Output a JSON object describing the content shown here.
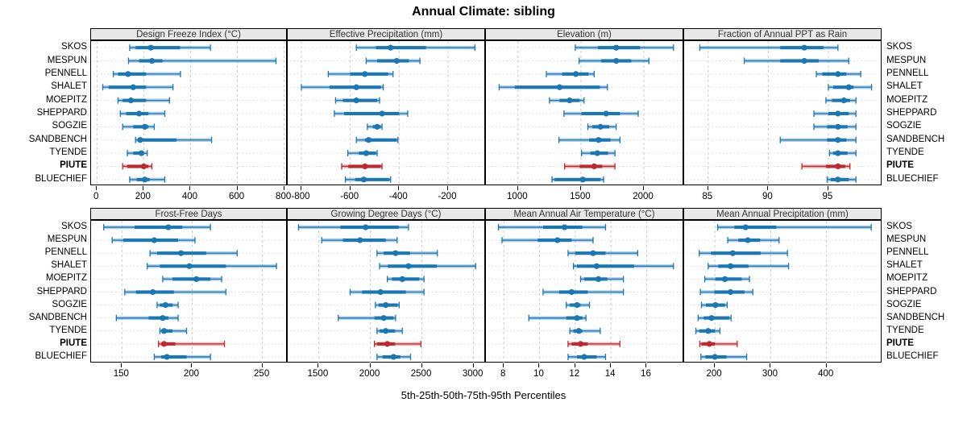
{
  "title": "Annual Climate: sibling",
  "xlabel": "5th-25th-50th-75th-95th Percentiles",
  "colors": {
    "series": "#1b76b4",
    "highlight": "#c0282d",
    "strip_bg": "#e8e8e8",
    "panel_border": "#000000",
    "grid_vertical": "#cccccc",
    "grid_horizontal": "#d9d9d9"
  },
  "chart_data": {
    "type": "dotplot-percentiles",
    "percentile_levels": [
      5,
      25,
      50,
      75,
      95
    ],
    "stations": [
      "SKOS",
      "MESPUN",
      "PENNELL",
      "SHALET",
      "MOEPITZ",
      "SHEPPARD",
      "SOGZIE",
      "SANDBENCH",
      "TYENDE",
      "PIUTE",
      "BLUECHIEF"
    ],
    "highlight_station": "PIUTE",
    "legend": "5th-25th-50th-75th-95th Percentiles",
    "panels": [
      {
        "title": "Design Freeze Index (°C)",
        "grid_row": 0,
        "grid_col": 0,
        "xlim": [
          -25,
          815
        ],
        "ticks": [
          0,
          200,
          400,
          600,
          800
        ],
        "values": {
          "SKOS": [
            140,
            165,
            230,
            355,
            485
          ],
          "MESPUN": [
            135,
            180,
            235,
            280,
            765
          ],
          "PENNELL": [
            70,
            90,
            133,
            210,
            357
          ],
          "SHALET": [
            25,
            50,
            155,
            210,
            325
          ],
          "MOEPITZ": [
            90,
            110,
            145,
            210,
            310
          ],
          "SHEPPARD": [
            100,
            125,
            180,
            220,
            290
          ],
          "SOGZIE": [
            110,
            155,
            205,
            220,
            245
          ],
          "SANDBENCH": [
            165,
            175,
            185,
            340,
            490
          ],
          "TYENDE": [
            130,
            155,
            190,
            195,
            215
          ],
          "PIUTE": [
            110,
            130,
            200,
            220,
            235
          ],
          "BLUECHIEF": [
            140,
            170,
            205,
            225,
            290
          ]
        }
      },
      {
        "title": "Effective Precipitation (mm)",
        "grid_row": 0,
        "grid_col": 1,
        "xlim": [
          -856,
          -45
        ],
        "ticks": [
          -800,
          -600,
          -400,
          -200
        ],
        "values": {
          "SKOS": [
            -575,
            -495,
            -435,
            -290,
            -90
          ],
          "MESPUN": [
            -535,
            -490,
            -410,
            -360,
            -315
          ],
          "PENNELL": [
            -690,
            -600,
            -540,
            -445,
            -425
          ],
          "SHALET": [
            -800,
            -685,
            -575,
            -475,
            -465
          ],
          "MOEPITZ": [
            -660,
            -630,
            -575,
            -490,
            -480
          ],
          "SHEPPARD": [
            -665,
            -625,
            -470,
            -400,
            -365
          ],
          "SOGZIE": [
            -530,
            -508,
            -490,
            -475,
            -470
          ],
          "SANDBENCH": [
            -575,
            -540,
            -525,
            -410,
            -405
          ],
          "TYENDE": [
            -610,
            -565,
            -535,
            -495,
            -490
          ],
          "PIUTE": [
            -635,
            -608,
            -540,
            -475,
            -470
          ],
          "BLUECHIEF": [
            -620,
            -580,
            -545,
            -440,
            -435
          ]
        }
      },
      {
        "title": "Elevation (m)",
        "grid_row": 0,
        "grid_col": 2,
        "xlim": [
          745,
          2320
        ],
        "ticks": [
          1000,
          1500,
          2000
        ],
        "values": {
          "SKOS": [
            1455,
            1635,
            1780,
            1970,
            2235
          ],
          "MESPUN": [
            1485,
            1660,
            1780,
            1900,
            2040
          ],
          "PENNELL": [
            1225,
            1350,
            1460,
            1560,
            1605
          ],
          "SHALET": [
            850,
            975,
            1330,
            1650,
            1710
          ],
          "MOEPITZ": [
            1250,
            1330,
            1410,
            1490,
            1525
          ],
          "SHEPPARD": [
            1365,
            1505,
            1700,
            1810,
            1955
          ],
          "SOGZIE": [
            1555,
            1590,
            1655,
            1725,
            1780
          ],
          "SANDBENCH": [
            1325,
            1565,
            1640,
            1735,
            1810
          ],
          "TYENDE": [
            1505,
            1575,
            1630,
            1715,
            1770
          ],
          "PIUTE": [
            1370,
            1490,
            1605,
            1670,
            1770
          ],
          "BLUECHIEF": [
            1270,
            1290,
            1515,
            1655,
            1680
          ]
        }
      },
      {
        "title": "Fraction of Annual PPT as Rain",
        "grid_row": 0,
        "grid_col": 3,
        "xlim": [
          83,
          99.5
        ],
        "ticks": [
          85,
          90,
          95
        ],
        "values": {
          "SKOS": [
            84.3,
            91,
            93,
            94.6,
            95.8
          ],
          "MESPUN": [
            88,
            91,
            93,
            94.2,
            96.7
          ],
          "PENNELL": [
            94,
            94.5,
            95.8,
            96.5,
            97.7
          ],
          "SHALET": [
            95,
            95.4,
            96.7,
            97.1,
            98.6
          ],
          "MOEPITZ": [
            94.8,
            95.3,
            96.3,
            96.8,
            97.3
          ],
          "SHEPPARD": [
            93.8,
            95,
            95.8,
            96.7,
            97.3
          ],
          "SOGZIE": [
            93.8,
            94.9,
            95.8,
            96.6,
            97.3
          ],
          "SANDBENCH": [
            91,
            94.9,
            95.8,
            96.5,
            97.3
          ],
          "TYENDE": [
            95.1,
            95.4,
            95.8,
            96.6,
            97.3
          ],
          "PIUTE": [
            92.8,
            94.8,
            95.8,
            96.4,
            96.8
          ],
          "BLUECHIEF": [
            94.9,
            95.2,
            95.8,
            96.7,
            97.3
          ]
        }
      },
      {
        "title": "Frost-Free Days",
        "grid_row": 1,
        "grid_col": 0,
        "xlim": [
          128,
          268
        ],
        "ticks": [
          150,
          200,
          250
        ],
        "values": {
          "SKOS": [
            137,
            159,
            183,
            193,
            213
          ],
          "MESPUN": [
            143,
            151,
            173,
            190,
            202
          ],
          "PENNELL": [
            170,
            175,
            192,
            210,
            232
          ],
          "SHALET": [
            168,
            177,
            198,
            224,
            260
          ],
          "MOEPITZ": [
            179,
            186,
            203,
            213,
            221
          ],
          "SHEPPARD": [
            152,
            160,
            172,
            187,
            224
          ],
          "SOGZIE": [
            175,
            177,
            181,
            186,
            190
          ],
          "SANDBENCH": [
            146,
            169,
            179,
            183,
            190
          ],
          "TYENDE": [
            177,
            178,
            180,
            186,
            196
          ],
          "PIUTE": [
            176,
            178,
            180,
            188,
            223
          ],
          "BLUECHIEF": [
            173,
            178,
            182,
            196,
            213
          ]
        }
      },
      {
        "title": "Growing Degree Days (°C)",
        "grid_row": 1,
        "grid_col": 1,
        "xlim": [
          1200,
          3120
        ],
        "ticks": [
          1500,
          2000,
          2500,
          3000
        ],
        "values": {
          "SKOS": [
            1305,
            1710,
            1955,
            2275,
            2370
          ],
          "MESPUN": [
            1530,
            1735,
            1900,
            2150,
            2260
          ],
          "PENNELL": [
            2065,
            2130,
            2245,
            2385,
            2650
          ],
          "SHALET": [
            2090,
            2170,
            2370,
            2645,
            3020
          ],
          "MOEPITZ": [
            2165,
            2210,
            2310,
            2475,
            2520
          ],
          "SHEPPARD": [
            1805,
            1920,
            2100,
            2345,
            2520
          ],
          "SOGZIE": [
            2050,
            2080,
            2150,
            2265,
            2280
          ],
          "SANDBENCH": [
            1690,
            2040,
            2130,
            2225,
            2245
          ],
          "TYENDE": [
            2065,
            2090,
            2150,
            2240,
            2310
          ],
          "PIUTE": [
            2040,
            2065,
            2165,
            2240,
            2490
          ],
          "BLUECHIEF": [
            2065,
            2120,
            2225,
            2290,
            2390
          ]
        }
      },
      {
        "title": "Mean Annual Air Temperature (°C)",
        "grid_row": 1,
        "grid_col": 2,
        "xlim": [
          7,
          18.1
        ],
        "ticks": [
          8,
          10,
          12,
          14,
          16
        ],
        "values": {
          "SKOS": [
            7.7,
            10.2,
            11.4,
            12.4,
            13.7
          ],
          "MESPUN": [
            7.9,
            9.9,
            11.0,
            11.8,
            13.0
          ],
          "PENNELL": [
            11.6,
            12.0,
            13.0,
            13.7,
            15.5
          ],
          "SHALET": [
            11.9,
            12.1,
            13.2,
            15.3,
            17.5
          ],
          "MOEPITZ": [
            12.3,
            12.5,
            13.3,
            13.8,
            14.7
          ],
          "SHEPPARD": [
            10.2,
            11.1,
            11.8,
            12.7,
            14.7
          ],
          "SOGZIE": [
            11.5,
            11.7,
            12.1,
            12.3,
            12.8
          ],
          "SANDBENCH": [
            9.4,
            11.5,
            12.1,
            12.4,
            12.6
          ],
          "TYENDE": [
            11.7,
            11.9,
            12.2,
            12.4,
            13.4
          ],
          "PIUTE": [
            11.6,
            11.8,
            12.3,
            12.7,
            14.5
          ],
          "BLUECHIEF": [
            11.6,
            12.1,
            12.5,
            13.2,
            13.7
          ]
        }
      },
      {
        "title": "Mean Annual Precipitation (mm)",
        "grid_row": 1,
        "grid_col": 3,
        "xlim": [
          145,
          500
        ],
        "ticks": [
          200,
          300,
          400
        ],
        "values": {
          "SKOS": [
            205,
            235,
            255,
            310,
            480
          ],
          "MESPUN": [
            223,
            242,
            259,
            281,
            315
          ],
          "PENNELL": [
            172,
            193,
            232,
            282,
            330
          ],
          "SHALET": [
            188,
            206,
            228,
            260,
            332
          ],
          "MOEPITZ": [
            182,
            201,
            218,
            248,
            262
          ],
          "SHEPPARD": [
            174,
            199,
            228,
            253,
            268
          ],
          "SOGZIE": [
            176,
            184,
            201,
            218,
            222
          ],
          "SANDBENCH": [
            170,
            180,
            194,
            226,
            229
          ],
          "TYENDE": [
            166,
            172,
            188,
            200,
            209
          ],
          "PIUTE": [
            173,
            176,
            190,
            200,
            240
          ],
          "BLUECHIEF": [
            175,
            183,
            200,
            221,
            257
          ]
        }
      }
    ]
  }
}
